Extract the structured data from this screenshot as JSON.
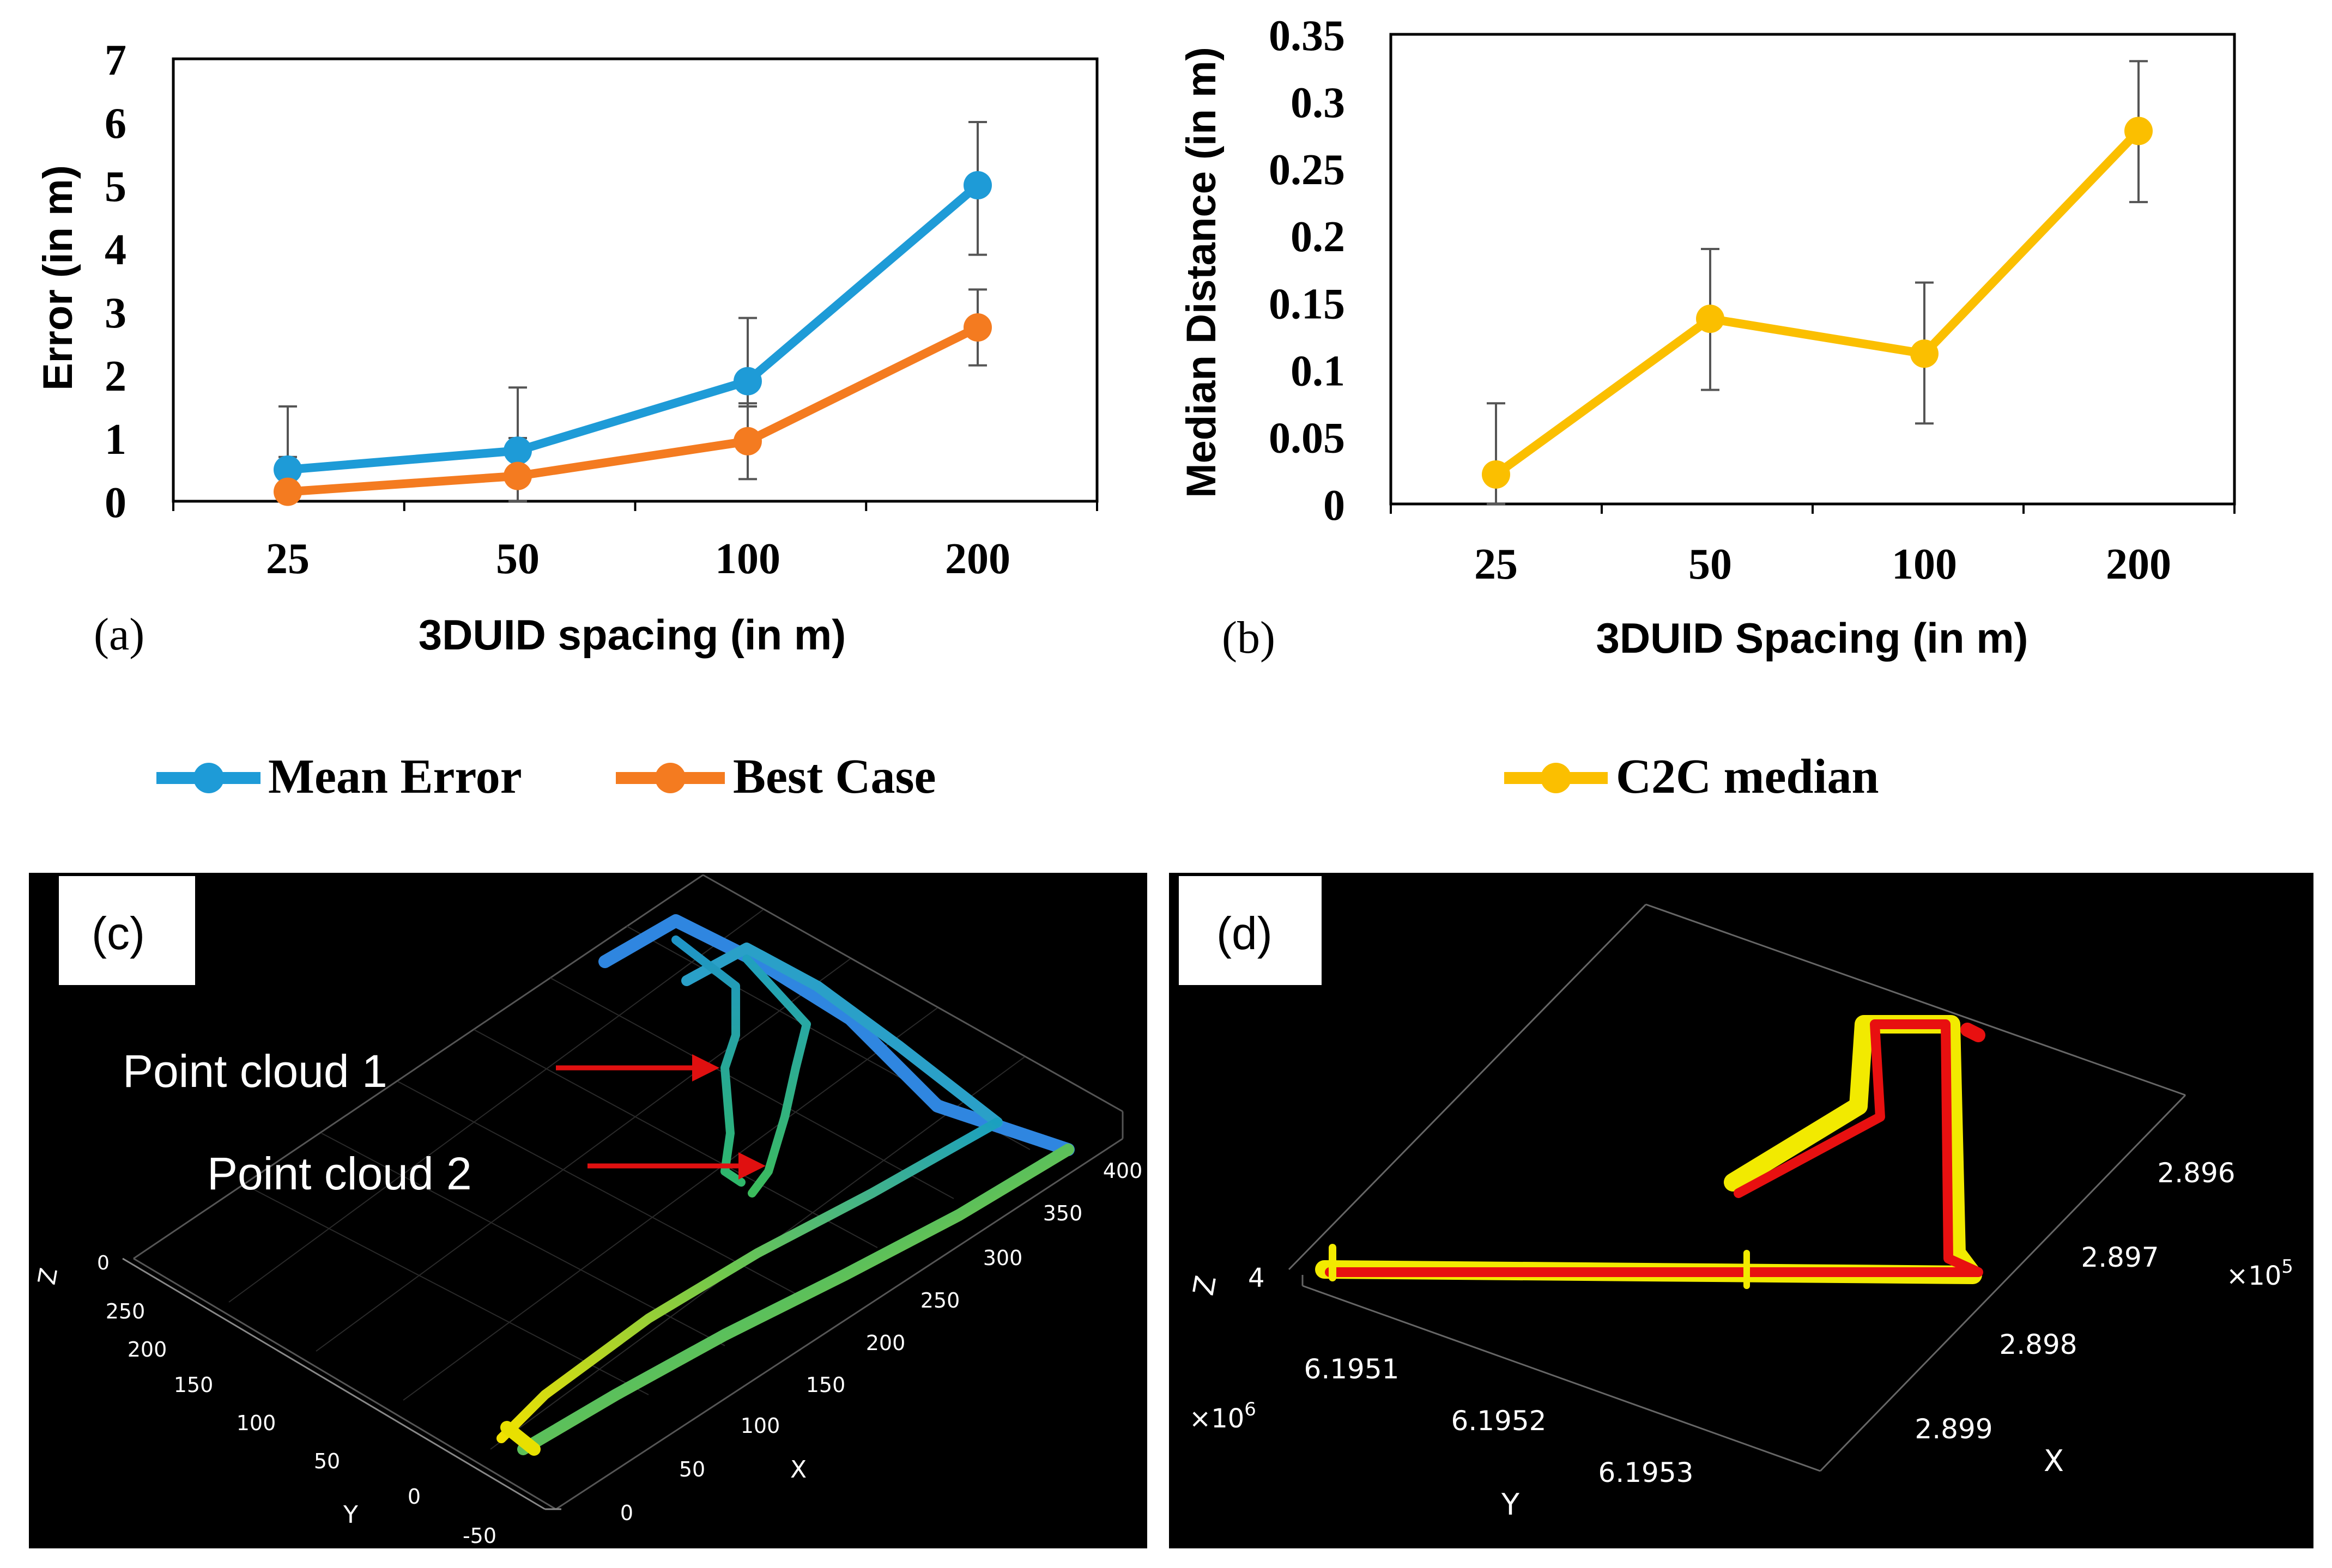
{
  "chart_data": [
    {
      "panel": "(a)",
      "type": "line",
      "categories": [
        "25",
        "50",
        "100",
        "200"
      ],
      "xlabel": "3DUID spacing (in m)",
      "ylabel": "Error (in m)",
      "ylim": [
        0,
        7
      ],
      "yticks": [
        "0",
        "1",
        "2",
        "3",
        "4",
        "5",
        "6",
        "7"
      ],
      "series": [
        {
          "name": "Mean Error",
          "color": "#1e9bd7",
          "values": [
            0.5,
            0.8,
            1.9,
            5.0
          ],
          "err_low": [
            0.2,
            0.4,
            1.5,
            3.9
          ],
          "err_high": [
            1.5,
            1.8,
            2.9,
            6.0
          ]
        },
        {
          "name": "Best Case",
          "color": "#f47b20",
          "values": [
            0.15,
            0.4,
            0.95,
            2.75
          ],
          "err_low": [
            0.0,
            0.0,
            0.35,
            2.15
          ],
          "err_high": [
            0.7,
            1.0,
            1.55,
            3.35
          ]
        }
      ]
    },
    {
      "panel": "(b)",
      "type": "line",
      "categories": [
        "25",
        "50",
        "100",
        "200"
      ],
      "xlabel": "3DUID Spacing (in m)",
      "ylabel": "Median Distance (in m)",
      "ylim": [
        0,
        0.35
      ],
      "yticks": [
        "0",
        "0.05",
        "0.1",
        "0.15",
        "0.2",
        "0.25",
        "0.3",
        "0.35"
      ],
      "series": [
        {
          "name": "C2C median",
          "color": "#fbbf00",
          "values": [
            0.022,
            0.138,
            0.112,
            0.278
          ],
          "err_low": [
            0.0,
            0.085,
            0.06,
            0.225
          ],
          "err_high": [
            0.075,
            0.19,
            0.165,
            0.33
          ]
        }
      ]
    }
  ],
  "panels": {
    "a_label": "(a)",
    "b_label": "(b)",
    "c_label": "(c)",
    "d_label": "(d)"
  },
  "legend": {
    "mean_error": "Mean Error",
    "best_case": "Best Case",
    "c2c_median": "C2C median"
  },
  "panel_c": {
    "annotation_1": "Point cloud 1",
    "annotation_2": "Point cloud 2",
    "axis_z": "Z",
    "axis_y": "Y",
    "axis_x": "X",
    "z_tick": "0",
    "y_ticks": [
      "250",
      "200",
      "150",
      "100",
      "50",
      "0",
      "-50"
    ],
    "x_ticks": [
      "0",
      "50",
      "100",
      "150",
      "200",
      "250",
      "300",
      "350",
      "400"
    ]
  },
  "panel_d": {
    "axis_z": "Z",
    "axis_y": "Y",
    "axis_x": "X",
    "z_tick": "4",
    "y_mult": "×10",
    "y_mult_exp": "6",
    "x_mult": "×10",
    "x_mult_exp": "5",
    "y_ticks": [
      "6.1951",
      "6.1952",
      "6.1953"
    ],
    "x_ticks": [
      "2.896",
      "2.897",
      "2.898",
      "2.899"
    ]
  }
}
